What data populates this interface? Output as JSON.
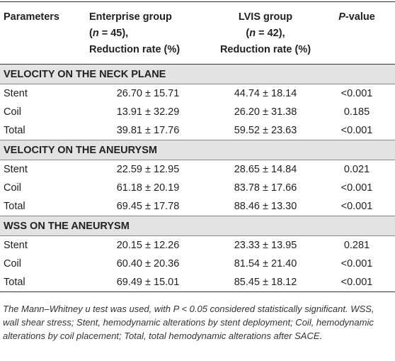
{
  "header": {
    "columns": [
      [
        "Parameters"
      ],
      [
        "Enterprise group",
        "(",
        "n",
        " = 45),",
        "Reduction rate (%)"
      ],
      [
        "LVIS group",
        "(",
        "n",
        " = 42),",
        "Reduction rate (%)"
      ],
      [
        "P",
        "-value"
      ]
    ]
  },
  "sections": [
    {
      "title": "VELOCITY ON THE NECK PLANE",
      "rows": [
        [
          "Stent",
          "26.70 ± 15.71",
          "44.74 ± 18.14",
          "<0.001"
        ],
        [
          "Coil",
          "13.91 ± 32.29",
          "26.20 ± 31.38",
          "0.185"
        ],
        [
          "Total",
          "39.81 ± 17.76",
          "59.52 ± 23.63",
          "<0.001"
        ]
      ]
    },
    {
      "title": "VELOCITY ON THE ANEURYSM",
      "rows": [
        [
          "Stent",
          "22.59 ± 12.95",
          "28.65 ± 14.84",
          "0.021"
        ],
        [
          "Coil",
          "61.18 ± 20.19",
          "83.78 ± 17.66",
          "<0.001"
        ],
        [
          "Total",
          "69.45 ± 17.78",
          "88.46 ± 13.30",
          "<0.001"
        ]
      ]
    },
    {
      "title": "WSS ON THE ANEURYSM",
      "rows": [
        [
          "Stent",
          "20.15 ± 12.26",
          "23.33 ± 13.95",
          "0.281"
        ],
        [
          "Coil",
          "60.40 ± 20.36",
          "81.54 ± 21.40",
          "<0.001"
        ],
        [
          "Total",
          "69.49 ± 15.01",
          "85.45 ± 18.12",
          "<0.001"
        ]
      ]
    }
  ],
  "footnote": "The Mann–Whitney u test was used, with P < 0.05 considered statistically significant. WSS, wall shear stress; Stent, hemodynamic alterations by stent deployment; Coil, hemodynamic alterations by coil placement; Total, total hemodynamic alterations after SACE."
}
